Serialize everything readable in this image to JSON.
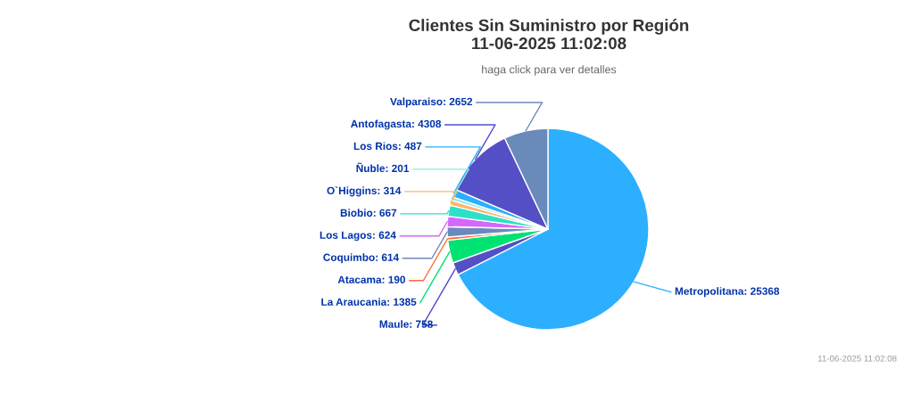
{
  "chart_data": {
    "type": "pie",
    "title": "Clientes Sin Suministro por Región\n11-06-2025 11:02:08",
    "subtitle": "haga click para ver detalles",
    "categories": [
      "Metropolitana",
      "Maule",
      "La Araucania",
      "Atacama",
      "Coquimbo",
      "Los Lagos",
      "Biobio",
      "O`Higgins",
      "Ñuble",
      "Los Rios",
      "Antofagasta",
      "Valparaiso"
    ],
    "values": [
      25368,
      758,
      1385,
      190,
      614,
      624,
      667,
      314,
      201,
      487,
      4308,
      2652
    ],
    "colors": [
      "#2caffe",
      "#544fc5",
      "#00e272",
      "#fe6a35",
      "#6b8abc",
      "#d568fb",
      "#2ee0ca",
      "#feb56a",
      "#91e8e1",
      "#2caffe",
      "#544fc5",
      "#6b8abc"
    ],
    "value_labels": [
      ": 25368",
      ": 758",
      ": 1385",
      ": 190",
      ": 614",
      ": 624",
      ": 667",
      ": 314",
      ": 201",
      ": 487",
      ": 4308",
      ": 2652"
    ],
    "annotations": [
      "11-06-2025 11:02:08"
    ]
  }
}
